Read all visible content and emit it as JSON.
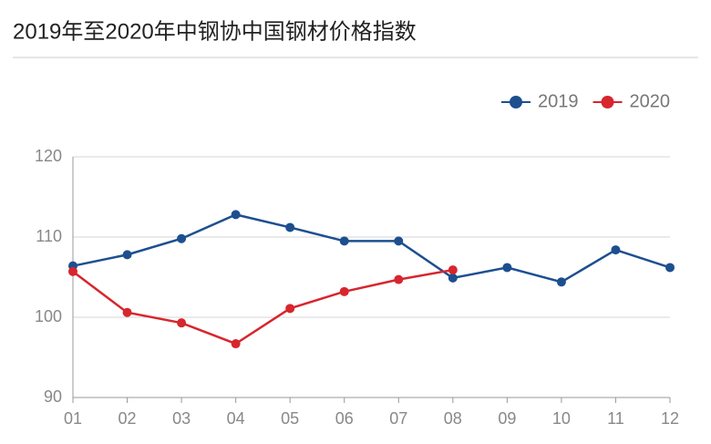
{
  "chart_data": {
    "type": "line",
    "title": "2019年至2020年中钢协中国钢材价格指数",
    "categories": [
      "01",
      "02",
      "03",
      "04",
      "05",
      "06",
      "07",
      "08",
      "09",
      "10",
      "11",
      "12"
    ],
    "series": [
      {
        "name": "2019",
        "color": "#1d4f8f",
        "values": [
          106.4,
          107.8,
          109.8,
          112.8,
          111.2,
          109.5,
          109.5,
          104.9,
          106.2,
          104.4,
          108.4,
          106.2
        ]
      },
      {
        "name": "2020",
        "color": "#d7262d",
        "values": [
          105.7,
          100.6,
          99.3,
          96.7,
          101.1,
          103.2,
          104.7,
          105.9,
          null,
          null,
          null,
          null
        ]
      }
    ],
    "ylim": [
      90,
      120
    ],
    "yticks": [
      90,
      100,
      110,
      120
    ],
    "grid": true,
    "legend": "top-right"
  }
}
